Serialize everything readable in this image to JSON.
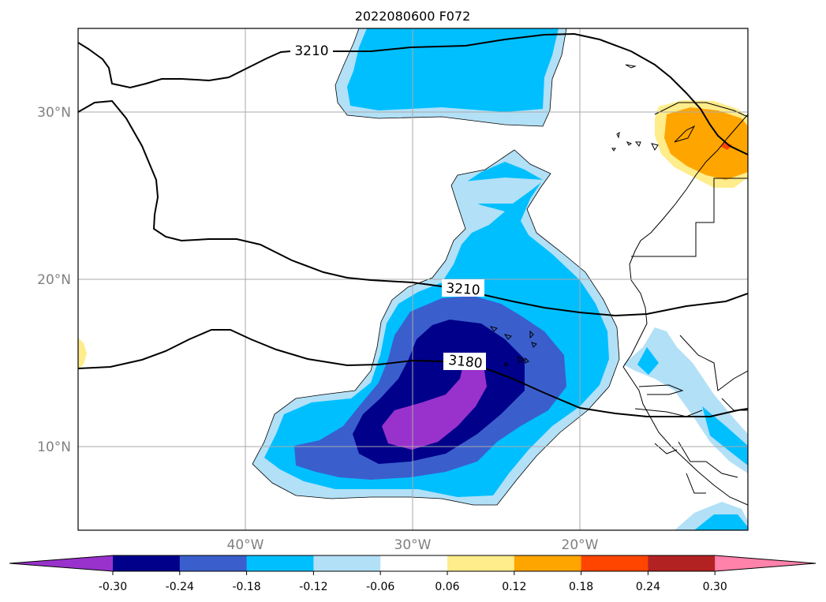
{
  "title": "2022080600 F072",
  "map": {
    "lat_labels": [
      "30°N",
      "20°N",
      "10°N"
    ],
    "lon_labels": [
      "40°W",
      "30°W",
      "20°W"
    ],
    "contour_labels": [
      "3210",
      "3210",
      "3180"
    ]
  },
  "colorbar": {
    "ticks": [
      "-0.30",
      "-0.24",
      "-0.18",
      "-0.12",
      "-0.06",
      "0.06",
      "0.12",
      "0.18",
      "0.24",
      "0.30"
    ],
    "colors": [
      "#9932CC",
      "#00008B",
      "#3A5FCD",
      "#00BFFF",
      "#B2E0F7",
      "#FFFFFF",
      "#FFEC8B",
      "#FFA500",
      "#FF4500",
      "#B22222",
      "#FF82AB"
    ]
  }
}
